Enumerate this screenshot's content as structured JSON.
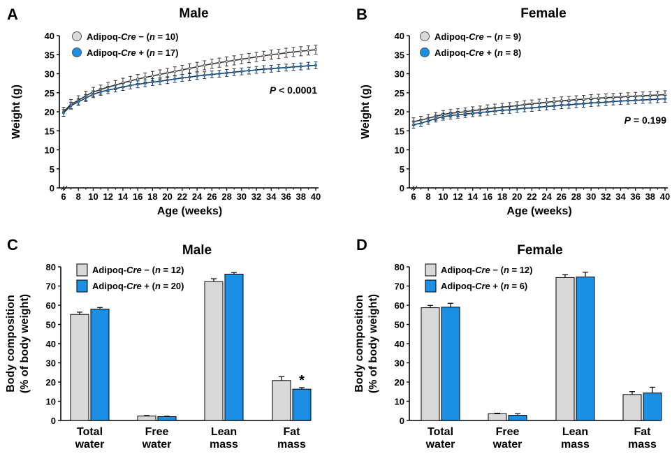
{
  "colors": {
    "ctrl": "#d9d9d9",
    "cre": "#1a8fe3",
    "ctrl_line": "#333333",
    "cre_line": "#1b3a5c"
  },
  "chart_data": [
    {
      "panel": "A",
      "type": "line",
      "title": "Male",
      "xlabel": "Age (weeks)",
      "ylabel": "Weight (g)",
      "xlim": [
        6,
        40
      ],
      "ylim": [
        0,
        40
      ],
      "yticks": [
        0,
        5,
        10,
        15,
        20,
        25,
        30,
        35,
        40
      ],
      "xticks": [
        6,
        8,
        10,
        12,
        14,
        16,
        18,
        20,
        22,
        24,
        26,
        28,
        30,
        32,
        34,
        36,
        38,
        40
      ],
      "x": [
        6,
        7,
        8,
        9,
        10,
        11,
        12,
        13,
        14,
        15,
        16,
        17,
        18,
        19,
        20,
        21,
        22,
        23,
        24,
        25,
        26,
        27,
        28,
        29,
        30,
        31,
        32,
        33,
        34,
        35,
        36,
        37,
        38,
        39,
        40
      ],
      "series": [
        {
          "name": "Adipoq-Cre − (n = 10)",
          "label_plain": "Adipoq-",
          "label_italic": "Cre",
          "label_rest": " − (",
          "n_italic": "n",
          "n_rest": " = 10)",
          "values": [
            20.0,
            22.0,
            23.0,
            24.2,
            25.2,
            25.8,
            26.5,
            27.0,
            27.6,
            28.1,
            28.6,
            29.0,
            29.4,
            29.8,
            30.2,
            30.6,
            31.0,
            31.4,
            31.8,
            32.2,
            32.6,
            32.9,
            33.2,
            33.5,
            33.8,
            34.1,
            34.4,
            34.7,
            35.0,
            35.2,
            35.5,
            35.7,
            35.9,
            36.1,
            36.3
          ],
          "error": 1.2
        },
        {
          "name": "Adipoq-Cre + (n = 17)",
          "label_plain": "Adipoq-",
          "label_italic": "Cre",
          "label_rest": " + (",
          "n_italic": "n",
          "n_rest": " = 17)",
          "values": [
            19.7,
            21.6,
            22.6,
            23.6,
            24.6,
            25.2,
            25.7,
            26.1,
            26.5,
            26.9,
            27.2,
            27.5,
            27.8,
            28.0,
            28.3,
            28.6,
            28.9,
            29.1,
            29.4,
            29.6,
            29.8,
            30.0,
            30.2,
            30.4,
            30.6,
            30.8,
            31.0,
            31.2,
            31.3,
            31.5,
            31.6,
            31.8,
            31.9,
            32.1,
            32.2
          ],
          "error": 0.9
        }
      ],
      "annotation": {
        "p_italic": "P",
        "p_rest": " < 0.0001"
      }
    },
    {
      "panel": "B",
      "type": "line",
      "title": "Female",
      "xlabel": "Age (weeks)",
      "ylabel": "Weight (g)",
      "xlim": [
        6,
        40
      ],
      "ylim": [
        0,
        40
      ],
      "yticks": [
        0,
        5,
        10,
        15,
        20,
        25,
        30,
        35,
        40
      ],
      "xticks": [
        6,
        8,
        10,
        12,
        14,
        16,
        18,
        20,
        22,
        24,
        26,
        28,
        30,
        32,
        34,
        36,
        38,
        40
      ],
      "x": [
        6,
        7,
        8,
        9,
        10,
        11,
        12,
        13,
        14,
        15,
        16,
        17,
        18,
        19,
        20,
        21,
        22,
        23,
        24,
        25,
        26,
        27,
        28,
        29,
        30,
        31,
        32,
        33,
        34,
        35,
        36,
        37,
        38,
        39,
        40
      ],
      "series": [
        {
          "name": "Adipoq-Cre − (n = 9)",
          "label_plain": "Adipoq-",
          "label_italic": "Cre",
          "label_rest": " − (",
          "n_italic": "n",
          "n_rest": " = 9)",
          "values": [
            17.4,
            17.8,
            18.3,
            18.8,
            19.3,
            19.6,
            19.8,
            20.0,
            20.3,
            20.5,
            20.8,
            21.0,
            21.2,
            21.4,
            21.6,
            21.9,
            22.1,
            22.3,
            22.5,
            22.7,
            22.9,
            23.0,
            23.2,
            23.3,
            23.5,
            23.6,
            23.7,
            23.8,
            23.9,
            24.0,
            24.1,
            24.2,
            24.3,
            24.4,
            24.5
          ],
          "error": 1.0
        },
        {
          "name": "Adipoq-Cre + (n = 8)",
          "label_plain": "Adipoq-",
          "label_italic": "Cre",
          "label_rest": " + (",
          "n_italic": "n",
          "n_rest": " = 8)",
          "values": [
            16.6,
            17.0,
            17.6,
            18.2,
            18.7,
            19.0,
            19.2,
            19.4,
            19.6,
            19.8,
            20.0,
            20.2,
            20.4,
            20.5,
            20.7,
            20.9,
            21.0,
            21.2,
            21.4,
            21.5,
            21.7,
            21.8,
            22.0,
            22.1,
            22.3,
            22.4,
            22.5,
            22.7,
            22.8,
            22.9,
            23.0,
            23.1,
            23.2,
            23.3,
            23.4
          ],
          "error": 0.9
        }
      ],
      "annotation": {
        "p_italic": "P",
        "p_rest": " = 0.199"
      }
    },
    {
      "panel": "C",
      "type": "bar",
      "title": "Male",
      "ylabel_line1": "Body composition",
      "ylabel_line2": "(% of body weight)",
      "ylim": [
        0,
        80
      ],
      "yticks": [
        0,
        10,
        20,
        30,
        40,
        50,
        60,
        70,
        80
      ],
      "categories": [
        [
          "Total",
          "water"
        ],
        [
          "Free",
          "water"
        ],
        [
          "Lean",
          "mass"
        ],
        [
          "Fat",
          "mass"
        ]
      ],
      "series": [
        {
          "name": "Adipoq-Cre − (n = 12)",
          "label_plain": "Adipoq-",
          "label_italic": "Cre",
          "label_rest": " − (",
          "n_italic": "n",
          "n_rest": " = 12)",
          "values": [
            55.2,
            2.3,
            72.3,
            20.8
          ],
          "errors": [
            1.2,
            0.3,
            1.5,
            2.0
          ]
        },
        {
          "name": "Adipoq-Cre + (n = 20)",
          "label_plain": "Adipoq-",
          "label_italic": "Cre",
          "label_rest": " + (",
          "n_italic": "n",
          "n_rest": " = 20)",
          "values": [
            58.0,
            2.0,
            76.2,
            16.3
          ],
          "errors": [
            0.8,
            0.2,
            0.8,
            0.8
          ]
        }
      ],
      "significance": [
        {
          "category_index": 3,
          "text": "*"
        }
      ]
    },
    {
      "panel": "D",
      "type": "bar",
      "title": "Female",
      "ylabel_line1": "Body composition",
      "ylabel_line2": "(% of body weight)",
      "ylim": [
        0,
        80
      ],
      "yticks": [
        0,
        10,
        20,
        30,
        40,
        50,
        60,
        70,
        80
      ],
      "categories": [
        [
          "Total",
          "water"
        ],
        [
          "Free",
          "water"
        ],
        [
          "Lean",
          "mass"
        ],
        [
          "Fat",
          "mass"
        ]
      ],
      "series": [
        {
          "name": "Adipoq-Cre − (n = 12)",
          "label_plain": "Adipoq-",
          "label_italic": "Cre",
          "label_rest": " − (",
          "n_italic": "n",
          "n_rest": " = 12)",
          "values": [
            58.7,
            3.5,
            74.4,
            13.5
          ],
          "errors": [
            1.2,
            0.3,
            1.5,
            1.5
          ]
        },
        {
          "name": "Adipoq-Cre + (n = 6)",
          "label_plain": "Adipoq-",
          "label_italic": "Cre",
          "label_rest": " + (",
          "n_italic": "n",
          "n_rest": " = 6)",
          "values": [
            59.0,
            2.7,
            74.7,
            14.3
          ],
          "errors": [
            2.0,
            0.8,
            2.5,
            3.0
          ]
        }
      ],
      "significance": []
    }
  ]
}
